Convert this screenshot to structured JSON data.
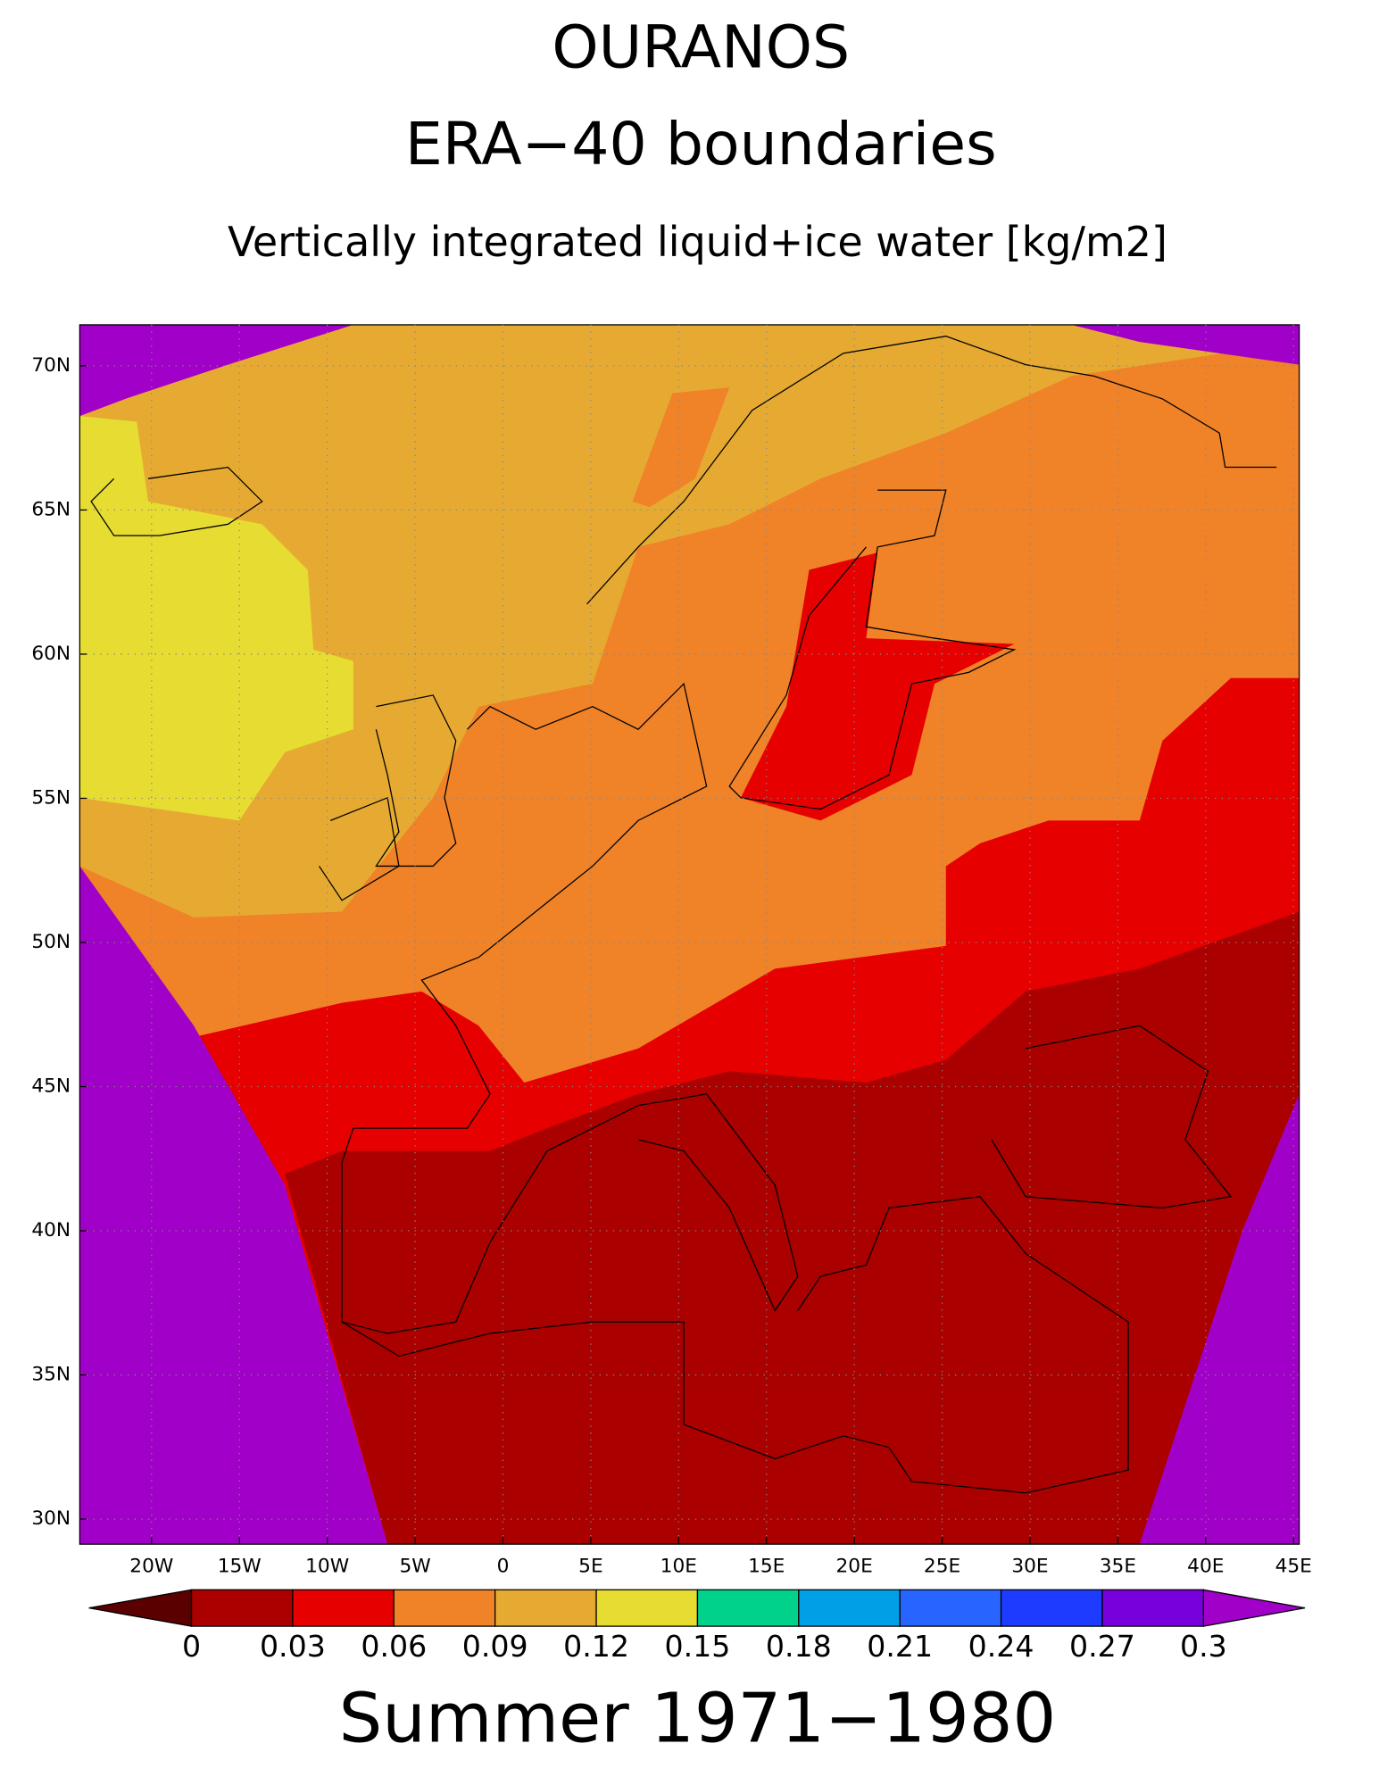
{
  "chart_data": {
    "type": "map",
    "title": "OURANOS",
    "subtitle": "ERA−40 boundaries",
    "variable": "Vertically integrated liquid+ice water [kg/m2]",
    "footer": "Summer 1971−1980",
    "xlim": [
      -23,
      46
    ],
    "ylim": [
      28.8,
      71.4
    ],
    "xticks": [
      {
        "value": -20,
        "label": "20W"
      },
      {
        "value": -15,
        "label": "15W"
      },
      {
        "value": -10,
        "label": "10W"
      },
      {
        "value": -5,
        "label": "5W"
      },
      0,
      {
        "value": 5,
        "label": "5E"
      },
      {
        "value": 10,
        "label": "10E"
      },
      {
        "value": 15,
        "label": "15E"
      },
      {
        "value": 20,
        "label": "20E"
      },
      {
        "value": 25,
        "label": "25E"
      },
      {
        "value": 30,
        "label": "30E"
      },
      {
        "value": 35,
        "label": "35E"
      },
      {
        "value": 40,
        "label": "40E"
      },
      {
        "value": 45,
        "label": "45E"
      }
    ],
    "yticks": [
      {
        "value": 30,
        "label": "30N"
      },
      {
        "value": 35,
        "label": "35N"
      },
      {
        "value": 40,
        "label": "40N"
      },
      {
        "value": 45,
        "label": "45N"
      },
      {
        "value": 50,
        "label": "50N"
      },
      {
        "value": 55,
        "label": "55N"
      },
      {
        "value": 60,
        "label": "60N"
      },
      {
        "value": 65,
        "label": "65N"
      },
      {
        "value": 70,
        "label": "70N"
      }
    ],
    "grid": true,
    "colorbar": {
      "levels": [
        0,
        0.03,
        0.06,
        0.09,
        0.12,
        0.15,
        0.18,
        0.21,
        0.24,
        0.27,
        0.3
      ],
      "colors": [
        "#5a0000",
        "#aa0000",
        "#e60000",
        "#f08228",
        "#e6aa32",
        "#e6dc32",
        "#00d28c",
        "#00a0e6",
        "#2864ff",
        "#1e3cff",
        "#7800dc",
        "#a000c8"
      ]
    }
  }
}
